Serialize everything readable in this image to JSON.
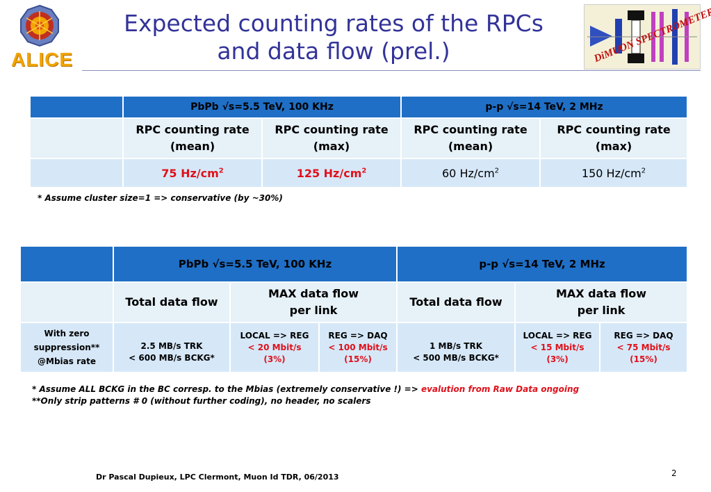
{
  "title_line1": "Expected counting rates of the RPCs",
  "title_line2": "and data flow (prel.)",
  "logos": {
    "alice_text": "ALICE",
    "dimuon_text": "DiMUON SPECTROMETER"
  },
  "table1": {
    "header_pbpb": "PbPb  √s=5.5 TeV, 100 KHz",
    "header_pp": "p-p  √s=14 TeV, 2 MHz",
    "col1_l1": "RPC counting rate",
    "col1_l2": "(mean)",
    "col2_l1": "RPC counting rate",
    "col2_l2": "(max)",
    "col3_l1": "RPC counting rate",
    "col3_l2": "(mean)",
    "col4_l1": "RPC counting rate",
    "col4_l2": "(max)",
    "v1": "75 Hz/cm",
    "v2": "125 Hz/cm",
    "v3": "60 Hz/cm",
    "v4": "150 Hz/cm",
    "sup": "2",
    "note": "* Assume cluster size=1 => conservative (by ~30%)"
  },
  "table2": {
    "header_pbpb": "PbPb  √s=5.5 TeV, 100 KHz",
    "header_pp": "p-p  √s=14 TeV, 2 MHz",
    "total_flow_1": "Total data flow",
    "max_flow_1_l1": "MAX data flow",
    "max_flow_1_l2": "per link",
    "total_flow_2": "Total data flow",
    "max_flow_2_l1": "MAX data flow",
    "max_flow_2_l2": "per link",
    "row_label_l1": "With zero",
    "row_label_l2": "suppression**",
    "row_label_l3": "@Mbias rate",
    "pbpb_total_l1": "2.5 MB/s TRK",
    "pbpb_total_l2": "< 600 MB/s BCKG*",
    "pbpb_local_l1": "LOCAL => REG",
    "pbpb_local_l2": "< 20 Mbit/s",
    "pbpb_local_l3": "(3%)",
    "pbpb_reg_l1": "REG => DAQ",
    "pbpb_reg_l2": "< 100 Mbit/s",
    "pbpb_reg_l3": "(15%)",
    "pp_total_l1": "1 MB/s   TRK",
    "pp_total_l2": "< 500 MB/s BCKG*",
    "pp_local_l1": "LOCAL => REG",
    "pp_local_l2": "< 15 Mbit/s",
    "pp_local_l3": "(3%)",
    "pp_reg_l1": "REG => DAQ",
    "pp_reg_l2": "< 75 Mbit/s",
    "pp_reg_l3": "(15%)"
  },
  "notes": {
    "line1_black": "* Assume ALL BCKG in the BC corresp. to the Mbias  (extremely conservative  !) => ",
    "line1_red": "evalution from Raw Data ongoing",
    "line2": "**Only strip patterns # 0 (without further coding), no header, no scalers"
  },
  "footer": "Dr Pascal Dupieux, LPC Clermont, Muon Id TDR, 06/2013",
  "page_number": "2",
  "colors": {
    "title": "#333399",
    "header_blue": "#1f6fc6",
    "red": "#e0101a"
  }
}
